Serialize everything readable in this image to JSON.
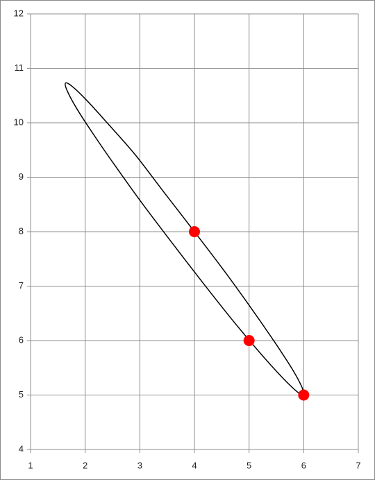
{
  "chart_data": {
    "type": "scatter",
    "xlim": [
      1,
      7
    ],
    "xticks": [
      1,
      2,
      3,
      4,
      5,
      6,
      7
    ],
    "ylim": [
      4,
      12
    ],
    "yticks": [
      4,
      5,
      6,
      7,
      8,
      9,
      10,
      11,
      12
    ],
    "grid": true,
    "series": [
      {
        "type": "line",
        "color": "#000000",
        "x": [
          6.0,
          5.97,
          5.8,
          5.49,
          5.07,
          4.56,
          4.0,
          3.43,
          2.91,
          2.41,
          2.03,
          1.76,
          1.64,
          1.67,
          1.84,
          2.15,
          2.57,
          3.08,
          3.64,
          4.21,
          4.75,
          5.23,
          5.61,
          5.88,
          6.0
        ],
        "y": [
          5.0,
          5.14,
          5.46,
          5.94,
          6.55,
          7.26,
          8.0,
          8.74,
          9.42,
          9.99,
          10.41,
          10.67,
          10.73,
          10.59,
          10.27,
          9.79,
          9.18,
          8.47,
          7.73,
          6.99,
          6.31,
          5.74,
          5.32,
          5.06,
          5.0
        ]
      },
      {
        "type": "scatter",
        "color": "#ff0000",
        "x": [
          4,
          5,
          6
        ],
        "y": [
          8,
          6,
          5
        ]
      }
    ]
  }
}
